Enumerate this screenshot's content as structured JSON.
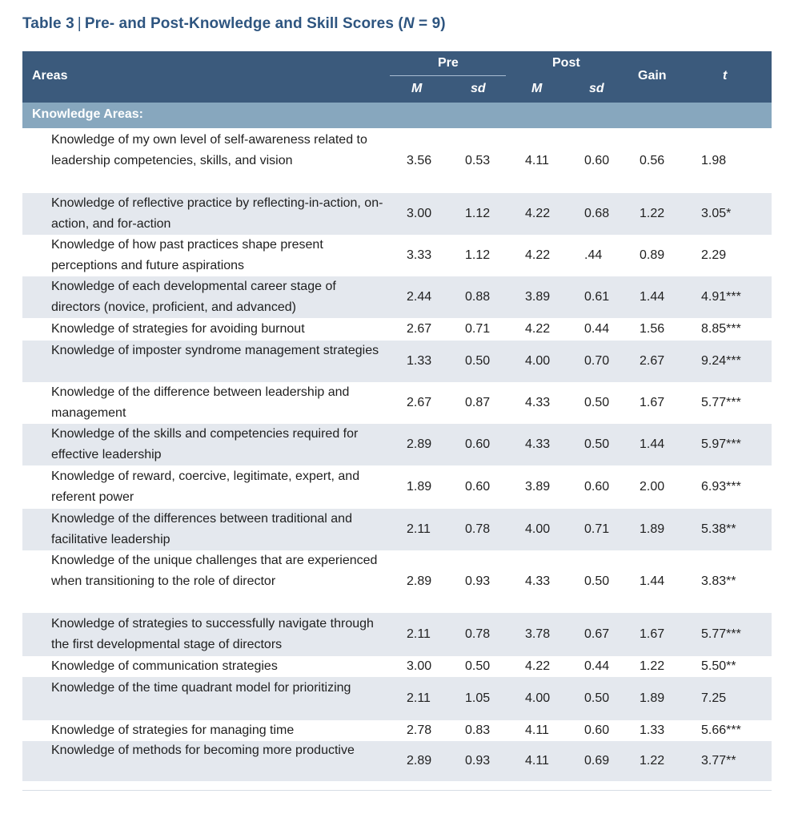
{
  "caption": {
    "label": "Table 3",
    "separator": "|",
    "text": "Pre- and Post-Knowledge and Skill Scores (",
    "n_var": "N",
    "n_value": " = 9)"
  },
  "header": {
    "areas": "Areas",
    "pre": "Pre",
    "post": "Post",
    "m": "M",
    "sd": "sd",
    "gain": "Gain",
    "t": "t"
  },
  "section_label": "Knowledge Areas:",
  "rows": [
    {
      "area": "Knowledge of my own level of self-awareness related to leadership competencies, skills, and vision",
      "pre_m": "3.56",
      "pre_sd": "0.53",
      "post_m": "4.11",
      "post_sd": "0.60",
      "gain": "0.56",
      "t": "1.98"
    },
    {
      "area": "Knowledge of reflective practice by reflecting-in-action, on-action, and for-action",
      "pre_m": "3.00",
      "pre_sd": "1.12",
      "post_m": "4.22",
      "post_sd": "0.68",
      "gain": "1.22",
      "t": "3.05*"
    },
    {
      "area": "Knowledge of how past practices shape present perceptions and future aspirations",
      "pre_m": "3.33",
      "pre_sd": "1.12",
      "post_m": "4.22",
      "post_sd": ".44",
      "gain": "0.89",
      "t": "2.29"
    },
    {
      "area": "Knowledge of each developmental career stage of directors (novice, proficient, and advanced)",
      "pre_m": "2.44",
      "pre_sd": "0.88",
      "post_m": "3.89",
      "post_sd": "0.61",
      "gain": "1.44",
      "t": "4.91***"
    },
    {
      "area": "Knowledge of strategies for avoiding burnout",
      "pre_m": "2.67",
      "pre_sd": "0.71",
      "post_m": "4.22",
      "post_sd": "0.44",
      "gain": "1.56",
      "t": "8.85***"
    },
    {
      "area": "Knowledge of imposter syndrome management strategies",
      "pre_m": "1.33",
      "pre_sd": "0.50",
      "post_m": "4.00",
      "post_sd": "0.70",
      "gain": "2.67",
      "t": "9.24***"
    },
    {
      "area": "Knowledge of the difference between leadership and management",
      "pre_m": "2.67",
      "pre_sd": "0.87",
      "post_m": "4.33",
      "post_sd": "0.50",
      "gain": "1.67",
      "t": "5.77***"
    },
    {
      "area": "Knowledge of the skills and competencies required for effective leadership",
      "pre_m": "2.89",
      "pre_sd": "0.60",
      "post_m": "4.33",
      "post_sd": "0.50",
      "gain": "1.44",
      "t": "5.97***"
    },
    {
      "area": "Knowledge of reward, coercive, legitimate, expert, and referent power",
      "pre_m": "1.89",
      "pre_sd": "0.60",
      "post_m": "3.89",
      "post_sd": "0.60",
      "gain": "2.00",
      "t": "6.93***"
    },
    {
      "area": "Knowledge of the differences between traditional and facilitative leadership",
      "pre_m": "2.11",
      "pre_sd": "0.78",
      "post_m": "4.00",
      "post_sd": "0.71",
      "gain": "1.89",
      "t": "5.38**"
    },
    {
      "area": "Knowledge of the unique challenges that are experienced when transitioning to the role of director",
      "pre_m": "2.89",
      "pre_sd": "0.93",
      "post_m": "4.33",
      "post_sd": "0.50",
      "gain": "1.44",
      "t": "3.83**"
    },
    {
      "area": "Knowledge of strategies to successfully navigate through the first developmental stage of directors",
      "pre_m": "2.11",
      "pre_sd": "0.78",
      "post_m": "3.78",
      "post_sd": "0.67",
      "gain": "1.67",
      "t": "5.77***"
    },
    {
      "area": "Knowledge of communication strategies",
      "pre_m": "3.00",
      "pre_sd": "0.50",
      "post_m": "4.22",
      "post_sd": "0.44",
      "gain": "1.22",
      "t": "5.50**"
    },
    {
      "area": "Knowledge of the time quadrant model for prioritizing",
      "pre_m": "2.11",
      "pre_sd": "1.05",
      "post_m": "4.00",
      "post_sd": "0.50",
      "gain": "1.89",
      "t": "7.25"
    },
    {
      "area": "Knowledge of strategies for managing time",
      "pre_m": "2.78",
      "pre_sd": "0.83",
      "post_m": "4.11",
      "post_sd": "0.60",
      "gain": "1.33",
      "t": "5.66***"
    },
    {
      "area": "Knowledge of methods for becoming more productive",
      "pre_m": "2.89",
      "pre_sd": "0.93",
      "post_m": "4.11",
      "post_sd": "0.69",
      "gain": "1.22",
      "t": "3.77**"
    }
  ]
}
